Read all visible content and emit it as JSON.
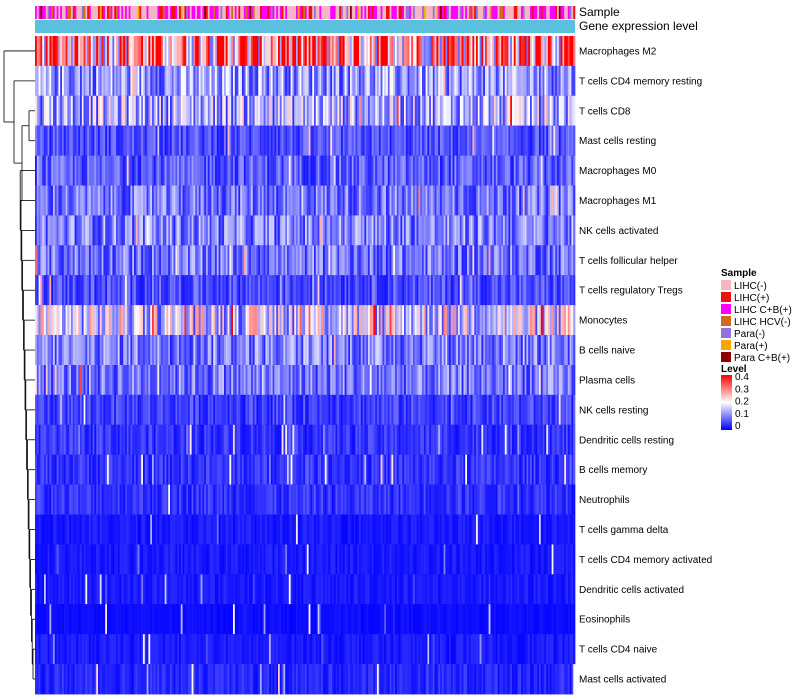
{
  "chart_data": {
    "type": "heatmap",
    "title": "",
    "annotation_tracks": [
      "Sample",
      "Gene expression level"
    ],
    "rows": [
      {
        "label": "Macrophages M2",
        "level": 0.3
      },
      {
        "label": "T cells CD4 memory resting",
        "level": 0.12
      },
      {
        "label": "T cells CD8",
        "level": 0.14
      },
      {
        "label": "Mast cells resting",
        "level": 0.06
      },
      {
        "label": "Macrophages M0",
        "level": 0.07
      },
      {
        "label": "Macrophages M1",
        "level": 0.09
      },
      {
        "label": "NK cells activated",
        "level": 0.1
      },
      {
        "label": "T cells follicular helper",
        "level": 0.09
      },
      {
        "label": "T cells regulatory  Tregs",
        "level": 0.06
      },
      {
        "label": "Monocytes",
        "level": 0.17
      },
      {
        "label": "B cells naive",
        "level": 0.1
      },
      {
        "label": "Plasma cells",
        "level": 0.09
      },
      {
        "label": "NK cells resting",
        "level": 0.05
      },
      {
        "label": "Dendritic cells resting",
        "level": 0.04
      },
      {
        "label": "B cells memory",
        "level": 0.04
      },
      {
        "label": "Neutrophils",
        "level": 0.04
      },
      {
        "label": "T cells gamma delta",
        "level": 0.02
      },
      {
        "label": "T cells CD4 memory activated",
        "level": 0.02
      },
      {
        "label": "Dendritic cells activated",
        "level": 0.02
      },
      {
        "label": "Eosinophils",
        "level": 0.01
      },
      {
        "label": "T cells CD4 naive",
        "level": 0.02
      },
      {
        "label": "Mast cells activated",
        "level": 0.03
      }
    ],
    "sample_groups": [
      {
        "name": "LIHC(-)",
        "color": "#f4b6c2"
      },
      {
        "name": "LIHC(+)",
        "color": "#ee1111"
      },
      {
        "name": "LIHC C+B(+)",
        "color": "#ff00ff"
      },
      {
        "name": "LIHC HCV(-)",
        "color": "#d2691e"
      },
      {
        "name": "Para(-)",
        "color": "#9370db"
      },
      {
        "name": "Para(+)",
        "color": "#ffa500"
      },
      {
        "name": "Para C+B(+)",
        "color": "#8b0000"
      }
    ],
    "gene_expression_color": "#5bc0de",
    "legend": {
      "sample_title": "Sample",
      "level_title": "Level",
      "level_ticks": [
        "0.4",
        "0.3",
        "0.2",
        "0.1",
        "0"
      ],
      "level_range": [
        0,
        0.4
      ],
      "placement": "right"
    },
    "color_scale": [
      "#0000ff",
      "#ffffff",
      "#ff0000"
    ],
    "n_samples": 300,
    "dendrogram": "rows"
  }
}
